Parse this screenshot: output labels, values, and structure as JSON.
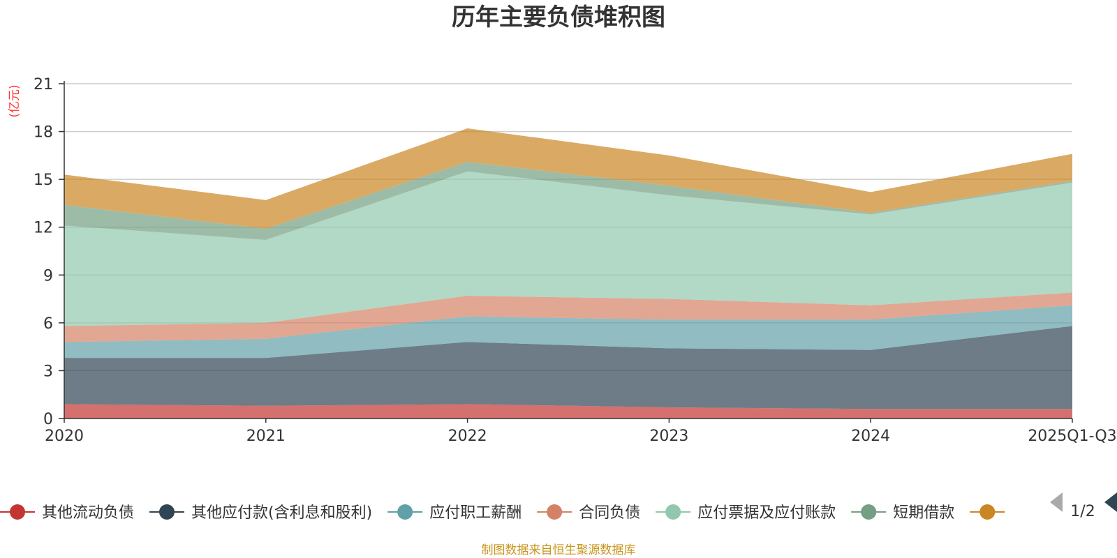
{
  "chart_data": {
    "type": "area",
    "stacked": true,
    "title": "历年主要负债堆积图",
    "unit_label": "(亿元)",
    "categories": [
      "2020",
      "2021",
      "2022",
      "2023",
      "2024",
      "2025Q1-Q3"
    ],
    "ylim": [
      0,
      21
    ],
    "yticks": [
      0,
      3,
      6,
      9,
      12,
      15,
      18,
      21
    ],
    "grid": true,
    "legend_position": "bottom",
    "series": [
      {
        "name": "其他流动负债",
        "color": "#c23531",
        "values": [
          0.9,
          0.8,
          0.9,
          0.7,
          0.6,
          0.6
        ]
      },
      {
        "name": "其他应付款(含利息和股利)",
        "color": "#2f4554",
        "values": [
          2.9,
          3.0,
          3.9,
          3.7,
          3.7,
          5.2
        ]
      },
      {
        "name": "应付职工薪酬",
        "color": "#61a0a8",
        "values": [
          1.0,
          1.2,
          1.6,
          1.8,
          1.9,
          1.3
        ]
      },
      {
        "name": "合同负债",
        "color": "#d48265",
        "values": [
          1.0,
          1.0,
          1.3,
          1.3,
          0.9,
          0.8
        ]
      },
      {
        "name": "应付票据及应付账款",
        "color": "#91c7ae",
        "values": [
          6.3,
          5.2,
          7.8,
          6.5,
          5.7,
          6.9
        ]
      },
      {
        "name": "短期借款",
        "color": "#749f83",
        "values": [
          1.3,
          0.7,
          0.6,
          0.6,
          0.1,
          0.1
        ]
      },
      {
        "name": "",
        "color": "#ca8622",
        "values": [
          1.9,
          1.8,
          2.1,
          1.9,
          1.3,
          1.7
        ]
      }
    ]
  },
  "legend_page": "1/2",
  "source_note": "制图数据来自恒生聚源数据库"
}
